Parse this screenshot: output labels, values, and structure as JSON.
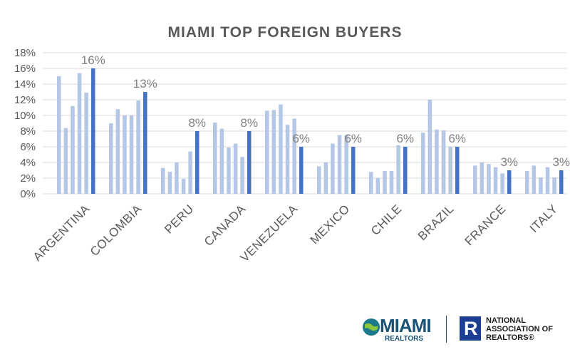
{
  "chart_data": {
    "type": "bar",
    "title": "MIAMI TOP FOREIGN BUYERS",
    "categories": [
      "ARGENTINA",
      "COLOMBIA",
      "PERU",
      "CANADA",
      "VENEZUELA",
      "MEXICO",
      "CHILE",
      "BRAZIL",
      "FRANCE",
      "ITALY"
    ],
    "series": [
      {
        "values": [
          15.0,
          9.0,
          3.3,
          9.1,
          10.6,
          3.5,
          2.8,
          7.8,
          3.6,
          2.9
        ]
      },
      {
        "values": [
          8.4,
          10.8,
          2.8,
          8.3,
          10.7,
          4.0,
          2.0,
          12.0,
          4.0,
          3.6
        ]
      },
      {
        "values": [
          11.2,
          10.0,
          4.0,
          5.9,
          11.4,
          6.4,
          2.9,
          8.2,
          3.8,
          2.1
        ]
      },
      {
        "values": [
          15.4,
          10.0,
          1.9,
          6.4,
          8.8,
          7.5,
          2.9,
          8.1,
          3.4,
          3.4
        ]
      },
      {
        "values": [
          12.9,
          11.9,
          5.4,
          4.7,
          9.6,
          7.5,
          6.2,
          6.0,
          2.6,
          2.1
        ]
      },
      {
        "values": [
          16,
          13,
          8,
          8,
          6,
          6,
          6,
          6,
          3,
          3
        ]
      }
    ],
    "data_labels": [
      "16%",
      "13%",
      "8%",
      "8%",
      "6%",
      "6%",
      "6%",
      "6%",
      "3%",
      "3%"
    ],
    "y_ticks": [
      "0%",
      "2%",
      "4%",
      "6%",
      "8%",
      "10%",
      "12%",
      "14%",
      "16%",
      "18%"
    ],
    "ylim": [
      0,
      18
    ],
    "grid": true,
    "colors": {
      "light": "#b4c7e7",
      "dark": "#4472c4",
      "grid": "#d9d9d9",
      "text": "#595959"
    }
  },
  "logos": {
    "miami": {
      "word": "MIAMI",
      "sub": "REALTORS"
    },
    "nar": {
      "mark": "R",
      "line1": "NATIONAL",
      "line2": "ASSOCIATION OF",
      "line3": "REALTORS®"
    }
  }
}
